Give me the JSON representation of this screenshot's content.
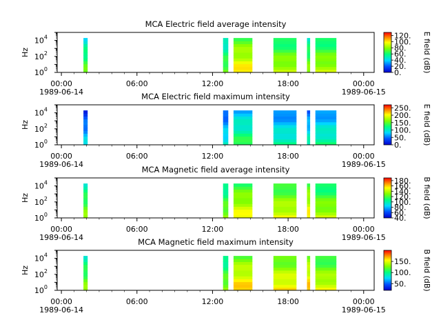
{
  "chart_data": [
    {
      "type": "heatmap",
      "title": "MCA  Electric field average intensity",
      "ylabel": "Hz",
      "y_scale": "log",
      "ylim": [
        1,
        100000
      ],
      "y_ticks": [
        {
          "base": "10",
          "exp": "0"
        },
        {
          "base": "10",
          "exp": "2"
        },
        {
          "base": "10",
          "exp": "4"
        }
      ],
      "x_ticks": [
        "00:00",
        "06:00",
        "12:00",
        "18:00",
        "00:00"
      ],
      "x_tick_dates": [
        "1989-06-14",
        "",
        "",
        "",
        "1989-06-15"
      ],
      "xlim": [
        "1989-06-13T23:40",
        "1989-06-15T00:50"
      ],
      "colorbar_label": "E field (dB)",
      "colorbar_range": [
        0,
        130
      ],
      "colorbar_ticks": [
        "120.",
        "100.",
        "80.",
        "60.",
        "40.",
        "20.",
        "0."
      ],
      "colormap": "rainbow",
      "data_intervals": [
        {
          "start": "01:45",
          "end": "02:05",
          "level": 0.45
        },
        {
          "start": "12:50",
          "end": "13:15",
          "level": 0.45
        },
        {
          "start": "13:40",
          "end": "15:10",
          "level": 0.65
        },
        {
          "start": "16:50",
          "end": "18:40",
          "level": 0.55
        },
        {
          "start": "19:30",
          "end": "19:45",
          "level": 0.5
        },
        {
          "start": "20:10",
          "end": "21:50",
          "level": 0.55
        }
      ]
    },
    {
      "type": "heatmap",
      "title": "MCA  Electric field maximum intensity",
      "ylabel": "Hz",
      "y_scale": "log",
      "ylim": [
        1,
        100000
      ],
      "y_ticks": [
        {
          "base": "10",
          "exp": "0"
        },
        {
          "base": "10",
          "exp": "2"
        },
        {
          "base": "10",
          "exp": "4"
        }
      ],
      "x_ticks": [
        "00:00",
        "06:00",
        "12:00",
        "18:00",
        "00:00"
      ],
      "x_tick_dates": [
        "1989-06-14",
        "",
        "",
        "",
        "1989-06-15"
      ],
      "xlim": [
        "1989-06-13T23:40",
        "1989-06-15T00:50"
      ],
      "colorbar_label": "E field (dB)",
      "colorbar_range": [
        0,
        270
      ],
      "colorbar_ticks": [
        "250.",
        "200.",
        "150.",
        "100.",
        "50.",
        "0."
      ],
      "colormap": "rainbow",
      "data_intervals": [
        {
          "start": "01:45",
          "end": "02:05",
          "level": 0.2
        },
        {
          "start": "12:50",
          "end": "13:15",
          "level": 0.25
        },
        {
          "start": "13:40",
          "end": "15:10",
          "level": 0.38
        },
        {
          "start": "16:50",
          "end": "18:40",
          "level": 0.3
        },
        {
          "start": "19:30",
          "end": "19:45",
          "level": 0.28
        },
        {
          "start": "20:10",
          "end": "21:50",
          "level": 0.32
        }
      ]
    },
    {
      "type": "heatmap",
      "title": "MCA  Magnetic field average intensity",
      "ylabel": "Hz",
      "y_scale": "log",
      "ylim": [
        1,
        100000
      ],
      "y_ticks": [
        {
          "base": "10",
          "exp": "0"
        },
        {
          "base": "10",
          "exp": "2"
        },
        {
          "base": "10",
          "exp": "4"
        }
      ],
      "x_ticks": [
        "00:00",
        "06:00",
        "12:00",
        "18:00",
        "00:00"
      ],
      "x_tick_dates": [
        "1989-06-14",
        "",
        "",
        "",
        "1989-06-15"
      ],
      "xlim": [
        "1989-06-13T23:40",
        "1989-06-15T00:50"
      ],
      "colorbar_label": "B field (dB)",
      "colorbar_range": [
        40,
        190
      ],
      "colorbar_ticks": [
        "180.",
        "160.",
        "140.",
        "120.",
        "100.",
        "80.",
        "60.",
        "40."
      ],
      "colormap": "rainbow",
      "data_intervals": [
        {
          "start": "01:45",
          "end": "02:05",
          "level": 0.5
        },
        {
          "start": "12:50",
          "end": "13:15",
          "level": 0.5
        },
        {
          "start": "13:40",
          "end": "15:10",
          "level": 0.62
        },
        {
          "start": "16:50",
          "end": "18:40",
          "level": 0.6
        },
        {
          "start": "19:30",
          "end": "19:45",
          "level": 0.65
        },
        {
          "start": "20:10",
          "end": "21:50",
          "level": 0.55
        }
      ]
    },
    {
      "type": "heatmap",
      "title": "MCA  Magnetic field maximum intensity",
      "ylabel": "Hz",
      "y_scale": "log",
      "ylim": [
        1,
        100000
      ],
      "y_ticks": [
        {
          "base": "10",
          "exp": "0"
        },
        {
          "base": "10",
          "exp": "2"
        },
        {
          "base": "10",
          "exp": "4"
        }
      ],
      "x_ticks": [
        "00:00",
        "06:00",
        "12:00",
        "18:00",
        "00:00"
      ],
      "x_tick_dates": [
        "1989-06-14",
        "",
        "",
        "",
        "1989-06-15"
      ],
      "xlim": [
        "1989-06-13T23:40",
        "1989-06-15T00:50"
      ],
      "colorbar_label": "B field (dB)",
      "colorbar_range": [
        20,
        200
      ],
      "colorbar_ticks": [
        "150.",
        "100.",
        "50."
      ],
      "colormap": "rainbow",
      "data_intervals": [
        {
          "start": "01:45",
          "end": "02:05",
          "level": 0.5
        },
        {
          "start": "12:50",
          "end": "13:15",
          "level": 0.5
        },
        {
          "start": "13:40",
          "end": "15:10",
          "level": 0.68
        },
        {
          "start": "16:50",
          "end": "18:40",
          "level": 0.65
        },
        {
          "start": "19:30",
          "end": "19:45",
          "level": 0.7
        },
        {
          "start": "20:10",
          "end": "21:50",
          "level": 0.6
        }
      ]
    }
  ]
}
